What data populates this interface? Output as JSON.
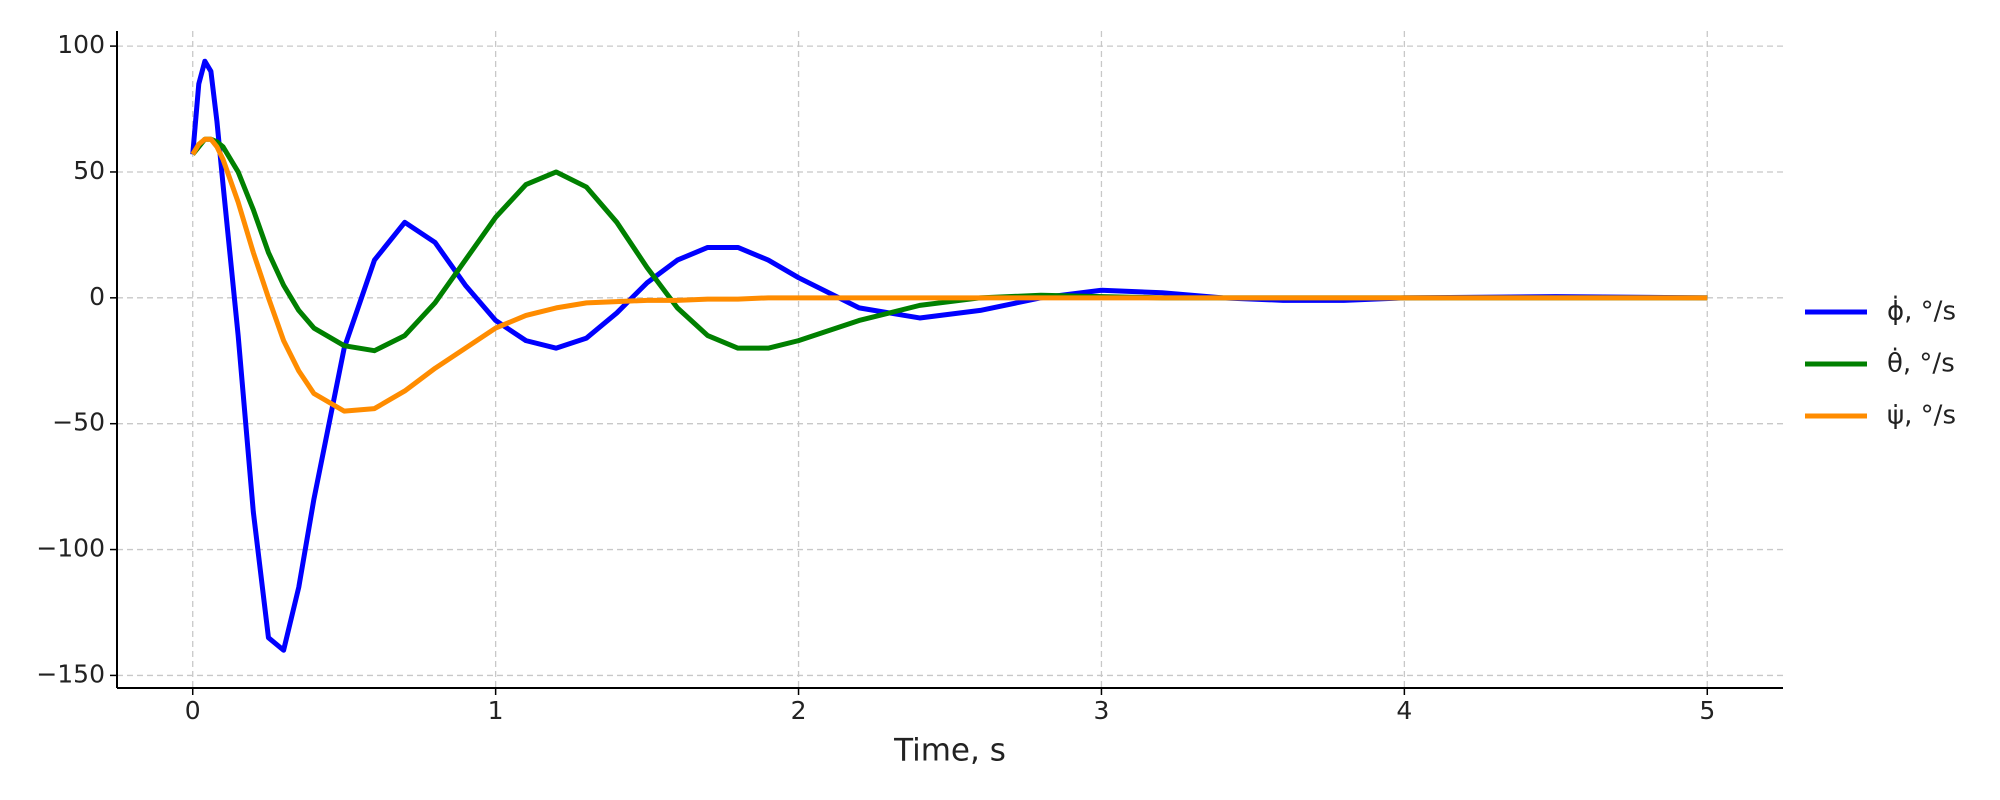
{
  "chart_data": {
    "type": "line",
    "x_label": "Time, s",
    "x": [
      0,
      0.02,
      0.04,
      0.06,
      0.08,
      0.1,
      0.15,
      0.2,
      0.25,
      0.3,
      0.35,
      0.4,
      0.5,
      0.6,
      0.7,
      0.8,
      0.9,
      1.0,
      1.1,
      1.2,
      1.3,
      1.4,
      1.5,
      1.6,
      1.7,
      1.8,
      1.9,
      2.0,
      2.2,
      2.4,
      2.6,
      2.8,
      3.0,
      3.2,
      3.4,
      3.6,
      3.8,
      4.0,
      4.5,
      5.0
    ],
    "series": [
      {
        "name": "ϕ̇, °/s",
        "color": "#0000ff",
        "values": [
          57,
          85,
          94,
          90,
          70,
          45,
          -15,
          -85,
          -135,
          -140,
          -115,
          -80,
          -20,
          15,
          30,
          22,
          5,
          -9,
          -17,
          -20,
          -16,
          -6,
          6,
          15,
          20,
          20,
          15,
          8,
          -4,
          -8,
          -5,
          0,
          3,
          2,
          0,
          -1,
          -1,
          0,
          0.5,
          0
        ]
      },
      {
        "name": "θ̇, °/s",
        "color": "#008000",
        "values": [
          57,
          60,
          63,
          63,
          62,
          60,
          50,
          35,
          18,
          5,
          -5,
          -12,
          -19,
          -21,
          -15,
          -2,
          15,
          32,
          45,
          50,
          44,
          30,
          12,
          -4,
          -15,
          -20,
          -20,
          -17,
          -9,
          -3,
          0,
          1,
          0.5,
          0,
          0,
          0,
          0,
          0,
          0,
          0
        ]
      },
      {
        "name": "ψ̇, °/s",
        "color": "#ff8c00",
        "values": [
          57,
          61,
          63,
          63,
          60,
          55,
          38,
          18,
          0,
          -17,
          -29,
          -38,
          -45,
          -44,
          -37,
          -28,
          -20,
          -12,
          -7,
          -4,
          -2,
          -1.5,
          -1,
          -1,
          -0.5,
          -0.5,
          0,
          0,
          0,
          0,
          0,
          0,
          0,
          0,
          0,
          0,
          0,
          0,
          0,
          0
        ]
      }
    ],
    "xlim": [
      -0.25,
      5.25
    ],
    "xticks": [
      0,
      1,
      2,
      3,
      4,
      5
    ],
    "ylim": [
      -155,
      106
    ],
    "yticks": [
      {
        "value": -150,
        "label": "−150"
      },
      {
        "value": -100,
        "label": "−100"
      },
      {
        "value": -50,
        "label": "−50"
      },
      0,
      50,
      100
    ],
    "grid": true,
    "legend": "right"
  }
}
